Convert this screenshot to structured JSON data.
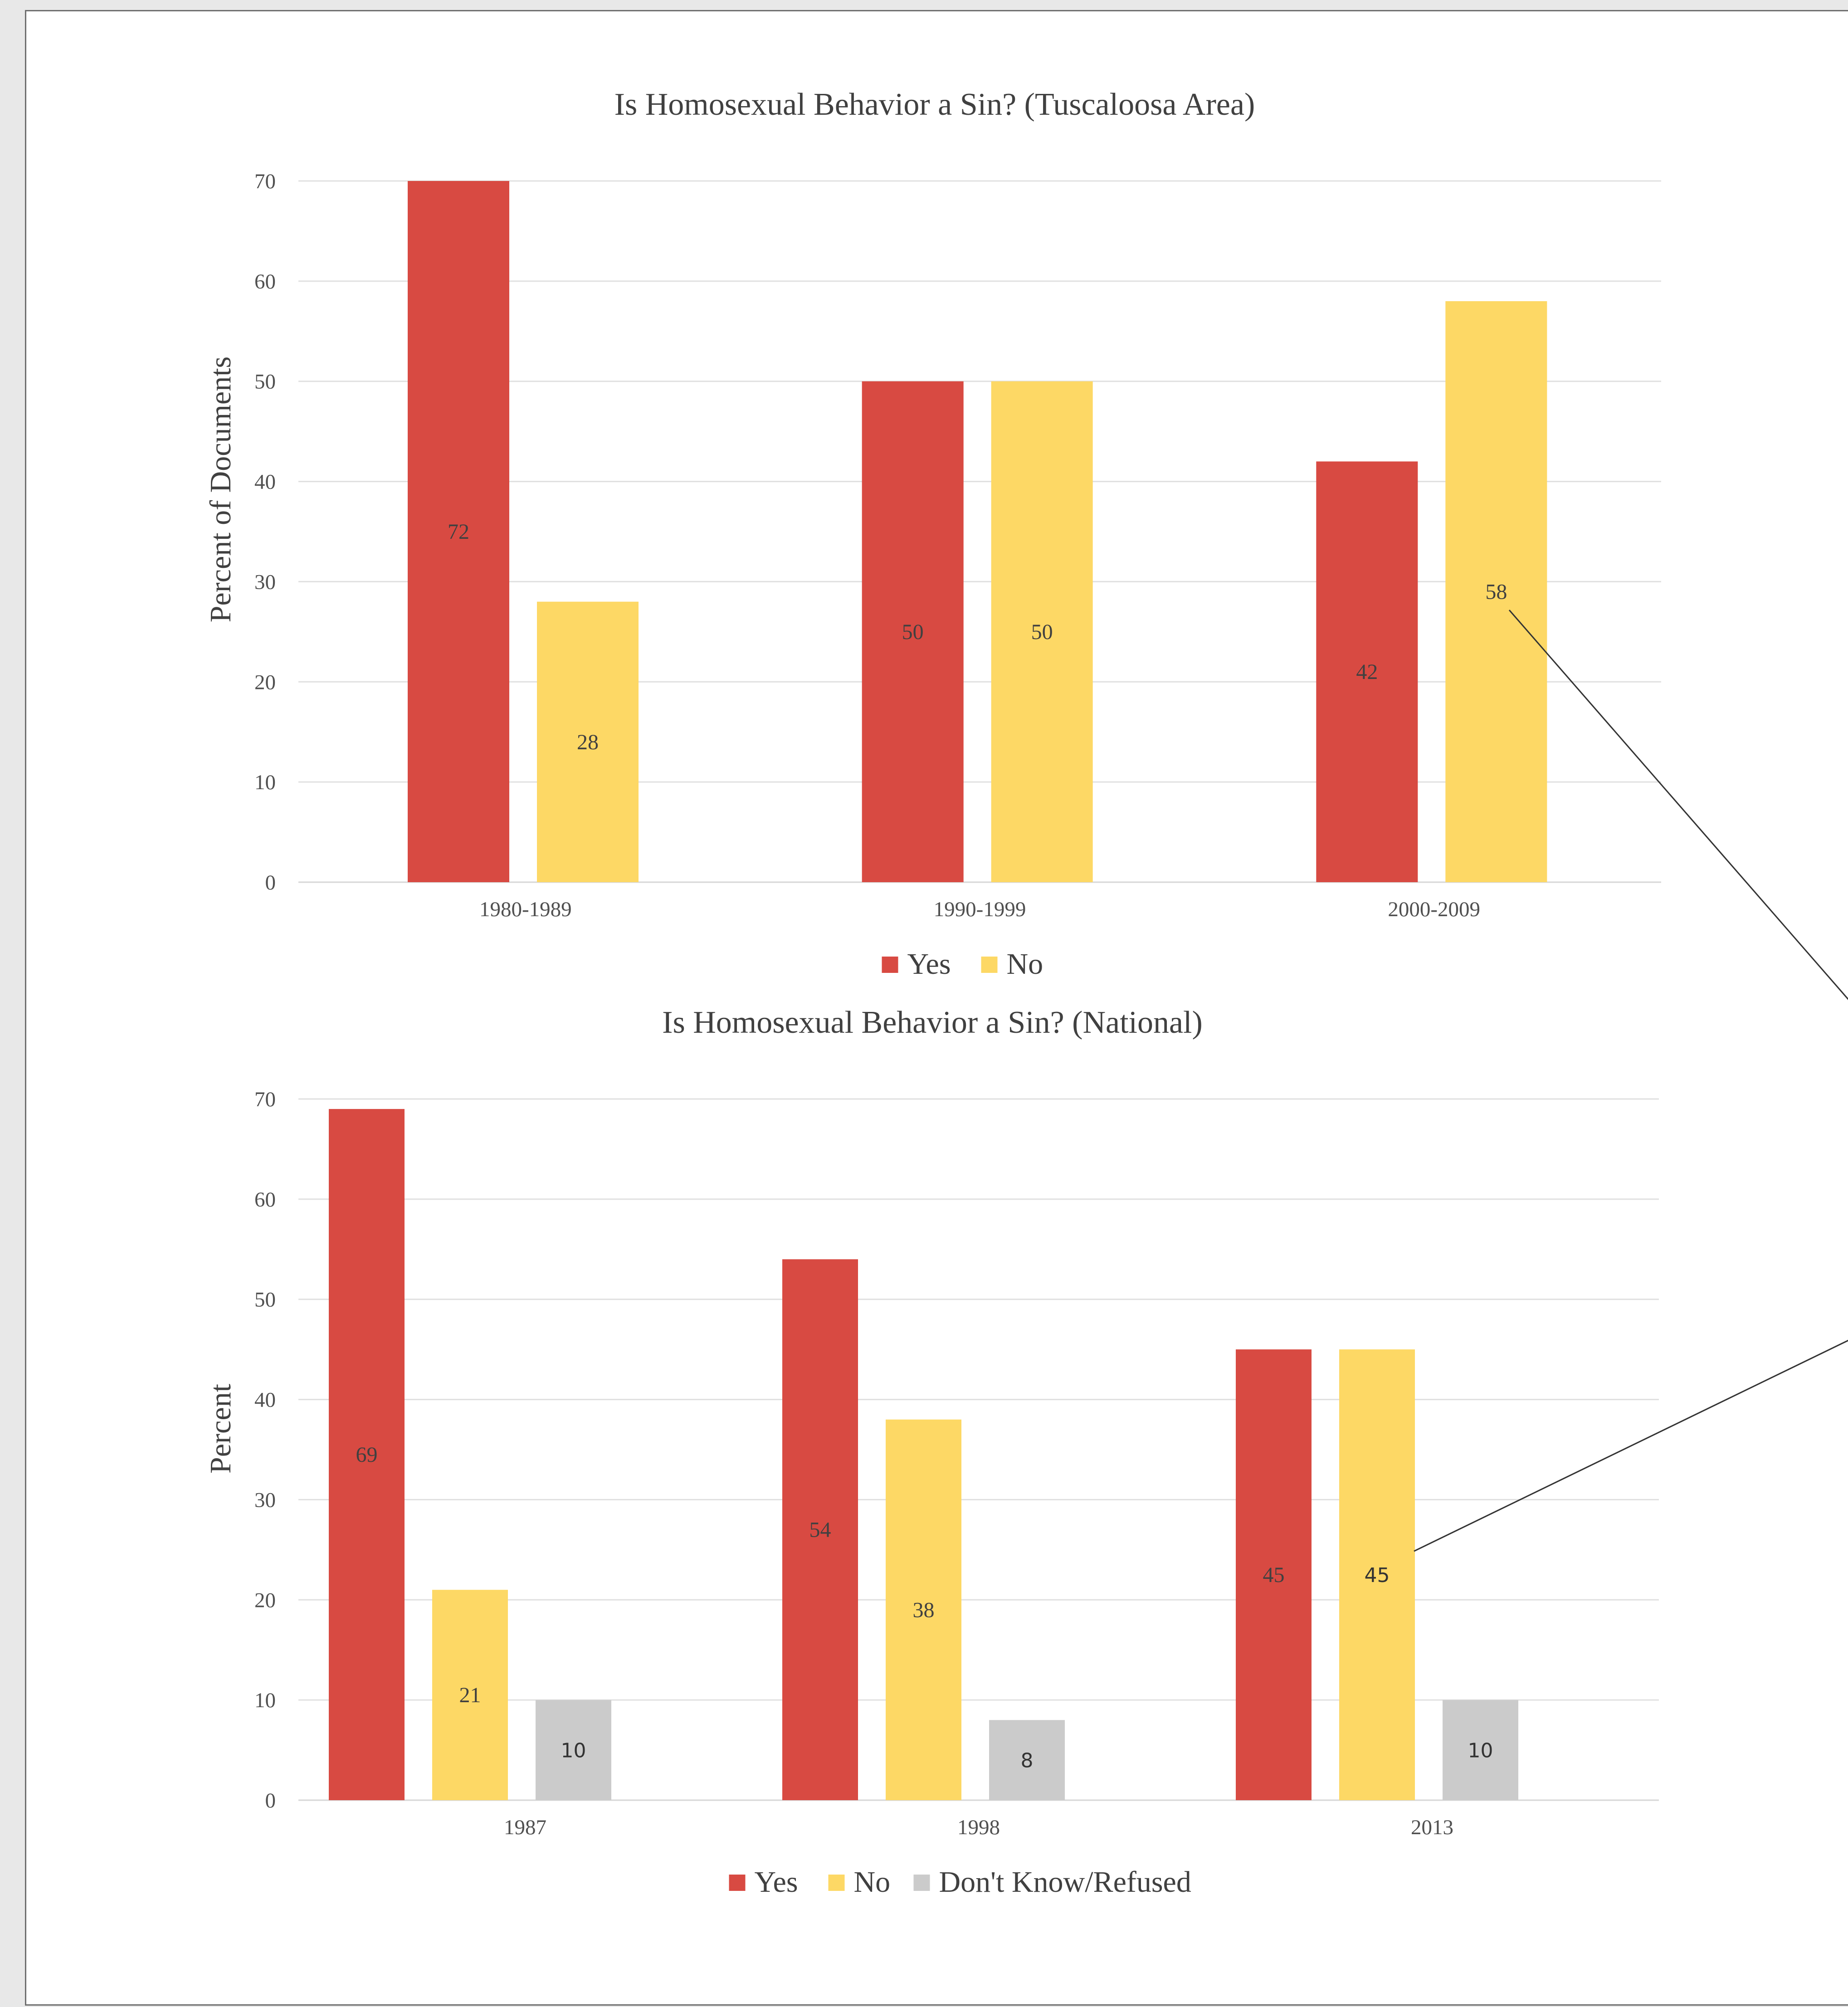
{
  "colors": {
    "yes": "#d84a42",
    "no": "#fdd865",
    "dk": "#cbcbcb"
  },
  "chart_data": [
    {
      "type": "bar",
      "title": "Is Homosexual Behavior a Sin? (Tuscaloosa Area)",
      "xlabel": "",
      "ylabel": "Percent of Documents",
      "categories": [
        "1980-1989",
        "1990-1999",
        "2000-2009"
      ],
      "series": [
        {
          "name": "Yes",
          "values": [
            72,
            50,
            42
          ]
        },
        {
          "name": "No",
          "values": [
            28,
            50,
            58
          ]
        }
      ],
      "ylim": [
        0,
        70
      ],
      "yticks": [
        "0",
        "10",
        "20",
        "30",
        "40",
        "50",
        "60",
        "70"
      ],
      "grid": true,
      "legend": "bottom"
    },
    {
      "type": "bar",
      "title": "Is Homosexual Behavior a Sin? (National)",
      "xlabel": "",
      "ylabel": "Percent",
      "categories": [
        "1987",
        "1998",
        "2013"
      ],
      "series": [
        {
          "name": "Yes",
          "values": [
            69,
            54,
            45
          ]
        },
        {
          "name": "No",
          "values": [
            21,
            38,
            45
          ]
        },
        {
          "name": "Don't Know/Refused",
          "values": [
            10,
            8,
            10
          ]
        }
      ],
      "ylim": [
        0,
        70
      ],
      "yticks": [
        "0",
        "10",
        "20",
        "30",
        "40",
        "50",
        "60",
        "70"
      ],
      "grid": true,
      "legend": "bottom"
    }
  ]
}
